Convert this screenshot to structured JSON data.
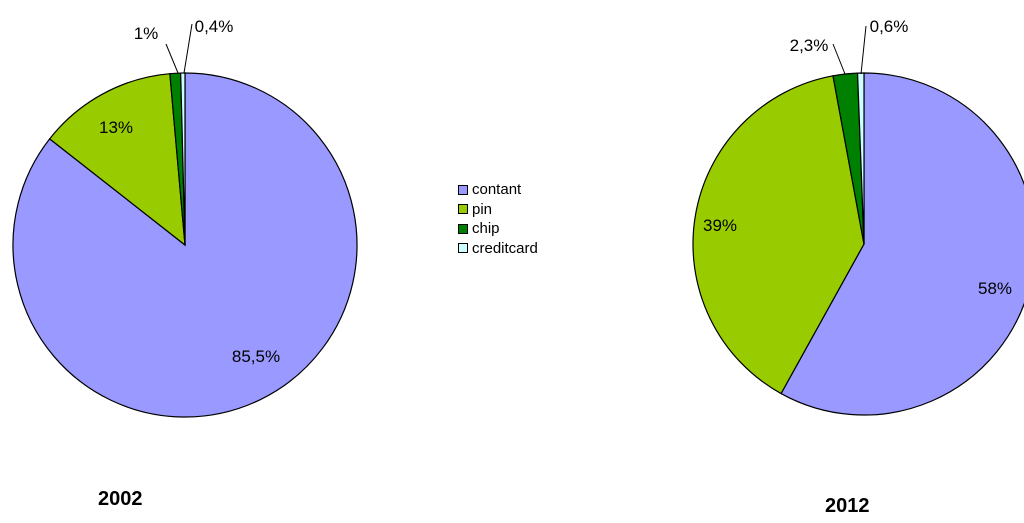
{
  "legend": {
    "items": [
      {
        "label": "contant",
        "color": "#9999ff"
      },
      {
        "label": "pin",
        "color": "#99cc00"
      },
      {
        "label": "chip",
        "color": "#008000"
      },
      {
        "label": "creditcard",
        "color": "#ccffff"
      }
    ]
  },
  "chart_data": [
    {
      "type": "pie",
      "title": "2002",
      "categories": [
        "contant",
        "pin",
        "chip",
        "creditcard"
      ],
      "values": [
        85.5,
        13,
        1,
        0.4
      ],
      "labels": [
        "85,5%",
        "13%",
        "1%",
        "0,4%"
      ],
      "colors": [
        "#9999ff",
        "#99cc00",
        "#008000",
        "#ccffff"
      ]
    },
    {
      "type": "pie",
      "title": "2012",
      "categories": [
        "contant",
        "pin",
        "chip",
        "creditcard"
      ],
      "values": [
        58,
        39,
        2.3,
        0.6
      ],
      "labels": [
        "58%",
        "39%",
        "2,3%",
        "0,6%"
      ],
      "colors": [
        "#9999ff",
        "#99cc00",
        "#008000",
        "#ccffff"
      ]
    }
  ]
}
